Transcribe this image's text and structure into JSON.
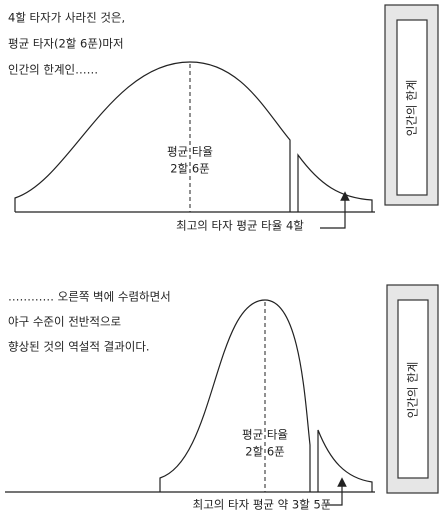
{
  "top": {
    "caption": [
      "4할 타자가 사라진 것은,",
      "평균 타자(2할 6푼)마저",
      "인간의 한계인……"
    ],
    "mean_label": [
      "평균 타율",
      "2할 6푼"
    ],
    "best_label": "최고의 타자 평균 타율 4할",
    "wall_label": "인간의 한계"
  },
  "bottom": {
    "caption": [
      "………… 오른쪽 벽에 수렴하면서",
      "야구 수준이 전반적으로",
      "향상된 것의 역설적 결과이다."
    ],
    "mean_label": [
      "평균 타율",
      "2할 6푼"
    ],
    "best_label": "최고의 타자 평균 약 3할 5푼",
    "wall_label": "인간의 한계"
  }
}
